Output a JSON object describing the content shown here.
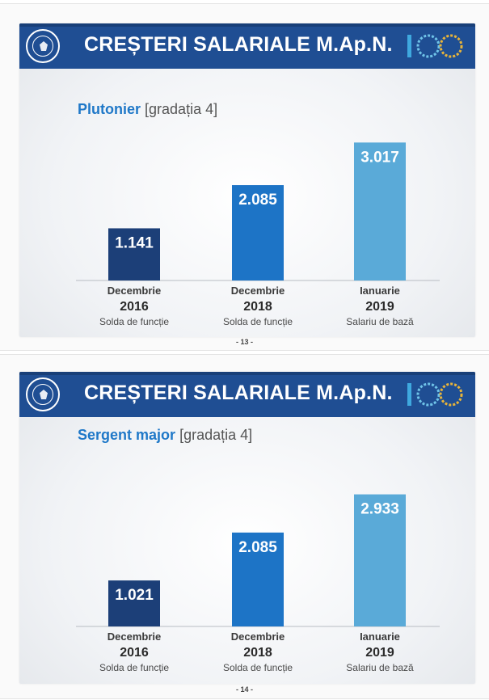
{
  "slides": [
    {
      "title": "CREȘTERI SALARIALE M.Ap.N.",
      "logo_text": "100",
      "rank": "Plutonier",
      "grade": "[gradația 4]",
      "page_number": "- 13 -"
    },
    {
      "title": "CREȘTERI SALARIALE M.Ap.N.",
      "logo_text": "100",
      "rank": "Sergent major",
      "grade": "[gradația 4]",
      "page_number": "- 14 -"
    }
  ],
  "colors": {
    "header": "#1f4e93",
    "bar_2016": "#1c3f78",
    "bar_2018": "#1d74c6",
    "bar_2019": "#5aaad8"
  },
  "chart_data": [
    {
      "type": "bar",
      "title": "Plutonier [gradația 4]",
      "categories": [
        {
          "month": "Decembrie",
          "year": "2016",
          "note": "Solda de funcție"
        },
        {
          "month": "Decembrie",
          "year": "2018",
          "note": "Solda de funcție"
        },
        {
          "month": "Ianuarie",
          "year": "2019",
          "note": "Salariu de bază"
        }
      ],
      "values": [
        1141,
        2085,
        3017
      ],
      "value_labels": [
        "1.141",
        "2.085",
        "3.017"
      ],
      "ylim": [
        0,
        3500
      ]
    },
    {
      "type": "bar",
      "title": "Sergent major [gradația 4]",
      "categories": [
        {
          "month": "Decembrie",
          "year": "2016",
          "note": "Solda de funcție"
        },
        {
          "month": "Decembrie",
          "year": "2018",
          "note": "Solda de funcție"
        },
        {
          "month": "Ianuarie",
          "year": "2019",
          "note": "Salariu de bază"
        }
      ],
      "values": [
        1021,
        2085,
        2933
      ],
      "value_labels": [
        "1.021",
        "2.085",
        "2.933"
      ],
      "ylim": [
        0,
        3500
      ]
    }
  ]
}
